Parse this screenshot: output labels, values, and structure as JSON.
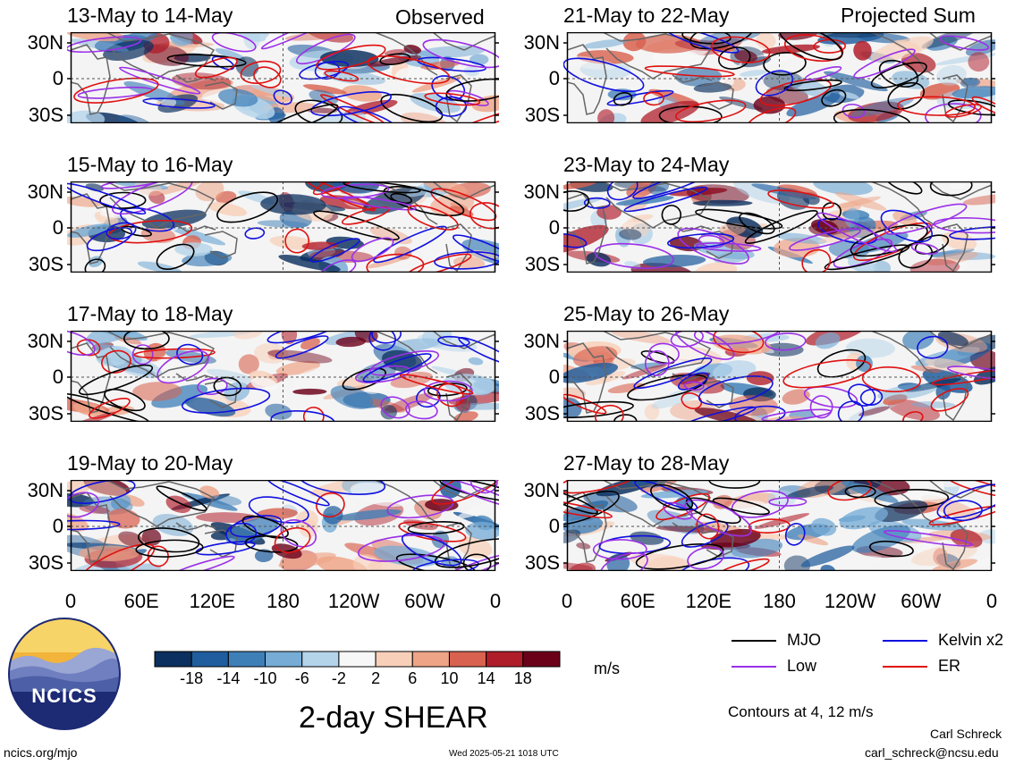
{
  "headers": {
    "left": "Observed",
    "right": "Projected Sum"
  },
  "panels_left": [
    {
      "title": "13-May to 14-May"
    },
    {
      "title": "15-May to 16-May"
    },
    {
      "title": "17-May to 18-May"
    },
    {
      "title": "19-May to 20-May"
    }
  ],
  "panels_right": [
    {
      "title": "21-May to 22-May"
    },
    {
      "title": "23-May to 24-May"
    },
    {
      "title": "25-May to 26-May"
    },
    {
      "title": "27-May to 28-May"
    }
  ],
  "lat_labels": [
    "30N",
    "0",
    "30S"
  ],
  "lon_labels": [
    "0",
    "60E",
    "120E",
    "180",
    "120W",
    "60W",
    "0"
  ],
  "colorbar": {
    "ticks": [
      "-18",
      "-14",
      "-10",
      "-6",
      "-2",
      "2",
      "6",
      "10",
      "14",
      "18"
    ],
    "colors": [
      "#0b2f5e",
      "#1f5d9e",
      "#3f7fb8",
      "#76acd6",
      "#b4d4ea",
      "#f7f7f7",
      "#f8d0b9",
      "#eea487",
      "#d8624f",
      "#b01d2a",
      "#6b0019"
    ],
    "unit": "m/s"
  },
  "legend": [
    {
      "label": "MJO",
      "color": "#000000"
    },
    {
      "label": "Kelvin x2",
      "color": "#1010e0"
    },
    {
      "label": "Low",
      "color": "#9b30e8"
    },
    {
      "label": "ER",
      "color": "#e01010"
    }
  ],
  "main_title": "2-day SHEAR",
  "contours_note": "Contours at 4, 12 m/s",
  "logo_text": "NCICS",
  "footer": {
    "website": "ncics.org/mjo",
    "timestamp": "Wed 2025-05-21 1018 UTC",
    "author": "Carl Schreck",
    "email": "carl_schreck@ncsu.edu"
  }
}
